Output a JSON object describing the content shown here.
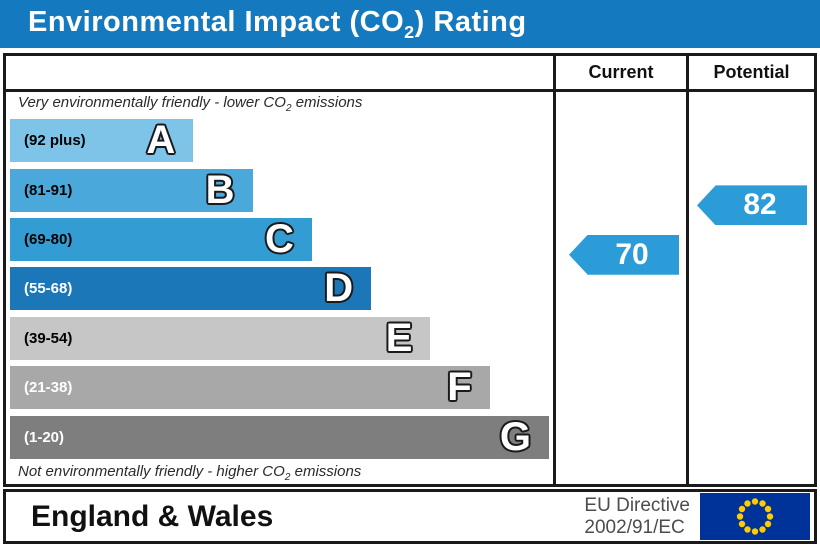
{
  "title": {
    "pre": "Environmental Impact (CO",
    "sub": "2",
    "post": ") Rating"
  },
  "columns": {
    "current": "Current",
    "potential": "Potential"
  },
  "captions": {
    "top_pre": "Very environmentally friendly - lower CO",
    "top_sub": "2",
    "top_post": " emissions",
    "bottom_pre": "Not environmentally friendly - higher CO",
    "bottom_sub": "2",
    "bottom_post": " emissions"
  },
  "bands": [
    {
      "letter": "A",
      "range": "(92 plus)",
      "color": "#7EC4E8",
      "text_color": "#000000",
      "width_pct": 34
    },
    {
      "letter": "B",
      "range": "(81-91)",
      "color": "#4BA8DA",
      "text_color": "#000000",
      "width_pct": 45
    },
    {
      "letter": "C",
      "range": "(69-80)",
      "color": "#339CD3",
      "text_color": "#000000",
      "width_pct": 56
    },
    {
      "letter": "D",
      "range": "(55-68)",
      "color": "#1B77B8",
      "text_color": "#FFFFFF",
      "width_pct": 67
    },
    {
      "letter": "E",
      "range": "(39-54)",
      "color": "#C6C6C6",
      "text_color": "#000000",
      "width_pct": 78
    },
    {
      "letter": "F",
      "range": "(21-38)",
      "color": "#A8A8A8",
      "text_color": "#FFFFFF",
      "width_pct": 89
    },
    {
      "letter": "G",
      "range": "(1-20)",
      "color": "#7E7E7E",
      "text_color": "#FFFFFF",
      "width_pct": 100
    }
  ],
  "ratings": {
    "current": {
      "value": "70",
      "band": "C",
      "color": "#2B9CD8"
    },
    "potential": {
      "value": "82",
      "band": "B",
      "color": "#2B9CD8"
    }
  },
  "footer": {
    "region": "England & Wales",
    "directive_line1": "EU Directive",
    "directive_line2": "2002/91/EC",
    "flag": {
      "background": "#003399",
      "star_color": "#FFCC00"
    }
  },
  "colors": {
    "title_bar": "#1479BE",
    "title_text": "#FFFFFF"
  },
  "chart_data": {
    "type": "bar",
    "orientation": "horizontal",
    "title": "Environmental Impact (CO2) Rating",
    "categories": [
      "A",
      "B",
      "C",
      "D",
      "E",
      "F",
      "G"
    ],
    "band_ranges": [
      "92 plus",
      "81-91",
      "69-80",
      "55-68",
      "39-54",
      "21-38",
      "1-20"
    ],
    "bar_lengths_pct": [
      34,
      45,
      56,
      67,
      78,
      89,
      100
    ],
    "scale_range": [
      1,
      100
    ],
    "markers": [
      {
        "name": "Current",
        "value": 70,
        "band": "C"
      },
      {
        "name": "Potential",
        "value": 82,
        "band": "B"
      }
    ],
    "top_annotation": "Very environmentally friendly - lower CO2 emissions",
    "bottom_annotation": "Not environmentally friendly - higher CO2 emissions",
    "footer_left": "England & Wales",
    "footer_right": "EU Directive 2002/91/EC"
  }
}
